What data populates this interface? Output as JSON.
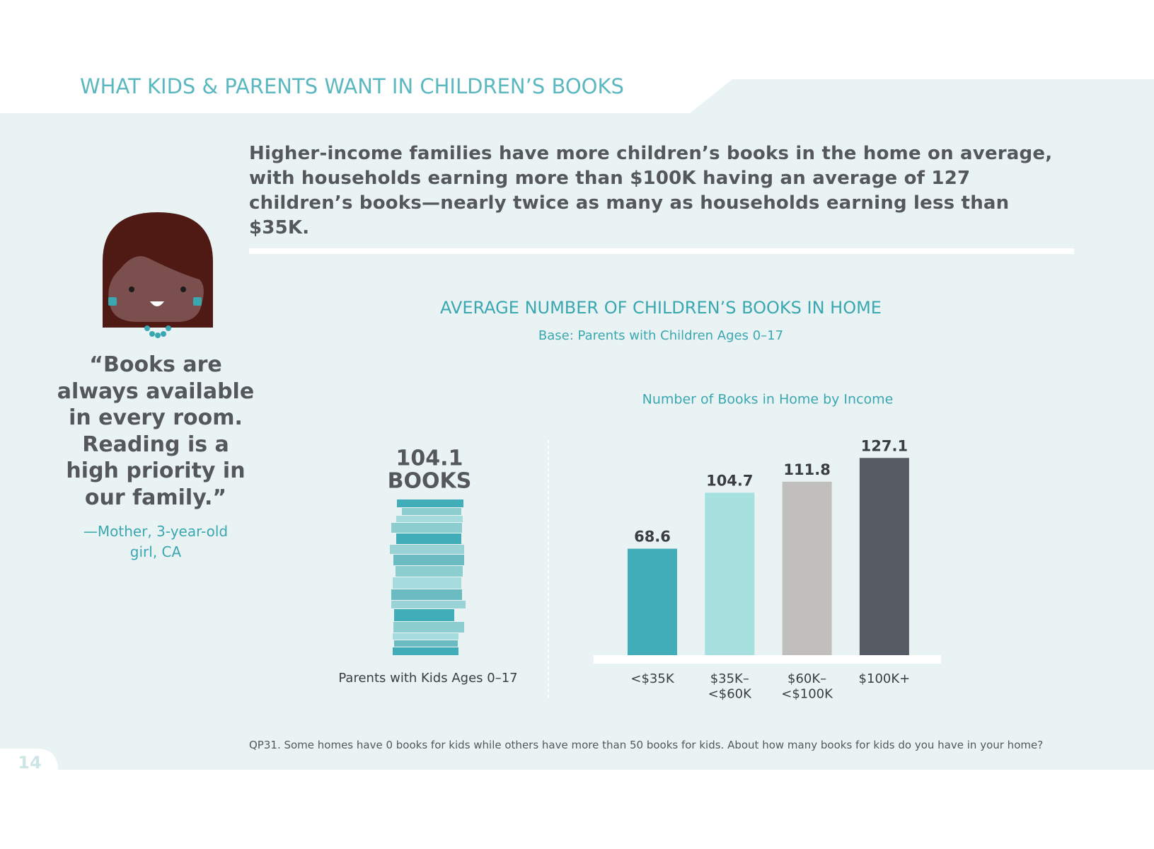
{
  "header": {
    "title": "WHAT KIDS & PARENTS WANT IN CHILDREN’S BOOKS"
  },
  "headline": "Higher-income families have more children’s books in the home on average, with households earning more than $100K having an average of 127 children’s books—nearly twice as many as households earning less than $35K.",
  "quote": {
    "text": "“Books are always available in every room. Reading is a high priority in our family.”",
    "attribution": "—Mother, 3-year-old girl, CA"
  },
  "chart_data": {
    "type": "bar",
    "title": "AVERAGE NUMBER OF CHILDREN’S BOOKS IN HOME",
    "subtitle": "Base: Parents with Children Ages 0–17",
    "overall": {
      "value": 104.1,
      "unit": "BOOKS",
      "label": "Parents with Kids Ages 0–17"
    },
    "bar_title": "Number of Books in Home by Income",
    "categories": [
      "<$35K",
      "$35K–\n<$60K",
      "$60K–\n<$100K",
      "$100K+"
    ],
    "values": [
      68.6,
      104.7,
      111.8,
      127.1
    ],
    "colors": [
      "#40adb8",
      "#a6e0df",
      "#c0bfbe",
      "#575b63"
    ]
  },
  "footnote": "QP31.  Some homes have 0 books for kids while others have more than 50 books for kids. About how many books for kids do you have in your home?",
  "page_number": "14"
}
